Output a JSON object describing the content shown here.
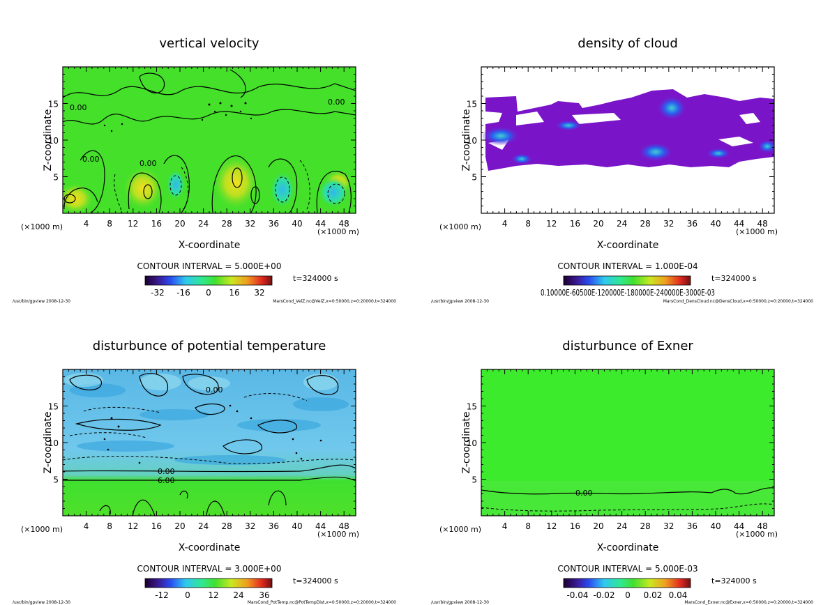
{
  "panels": [
    {
      "title": "vertical velocity",
      "xlabel": "X-coordinate",
      "ylabel": "Z-coordinate",
      "x_unit": "(×1000 m)",
      "x_ticks": [
        4,
        8,
        12,
        16,
        20,
        24,
        28,
        32,
        36,
        40,
        44,
        48
      ],
      "y_ticks": [
        5,
        10,
        15
      ],
      "contour_interval": "CONTOUR INTERVAL = 5.000E+00",
      "time": "t=324000 s",
      "colorbar_labels": [
        "-32",
        "-16",
        "0",
        "16",
        "32"
      ],
      "footer_left": "/usr/bin/gpview  2008-12-30",
      "footer_right": "MarsCond_VelZ.nc@VelZ,x=0:50000,z=0:20000,t=324000",
      "contour_labels": [
        "0.00",
        "0.00",
        "0.00",
        "0.00"
      ],
      "colors": {
        "background": "#44e02a"
      }
    },
    {
      "title": "density of cloud",
      "xlabel": "X-coordinate",
      "ylabel": "Z-coordinate",
      "x_unit": "(×1000 m)",
      "x_ticks": [
        4,
        8,
        12,
        16,
        20,
        24,
        28,
        32,
        36,
        40,
        44,
        48
      ],
      "y_ticks": [
        5,
        10,
        15
      ],
      "contour_interval": "CONTOUR INTERVAL = 1.000E-04",
      "time": "t=324000 s",
      "colorbar_labels": [
        "0.10000E-60500E-120000E-180000E-240000E-3000E-03"
      ],
      "footer_left": "/usr/bin/gpview  2008-12-30",
      "footer_right": "MarsCond_DensCloud.nc@DensCloud,x=0:50000,z=0:20000,t=324000",
      "contour_labels": [],
      "colors": {
        "cloud": "#7a14c8",
        "cloud_dense": "#2a6cf0"
      }
    },
    {
      "title": "disturbunce of potential temperature",
      "xlabel": "X-coordinate",
      "ylabel": "Z-coordinate",
      "x_unit": "(×1000 m)",
      "x_ticks": [
        4,
        8,
        12,
        16,
        20,
        24,
        28,
        32,
        36,
        40,
        44,
        48
      ],
      "y_ticks": [
        5,
        10,
        15
      ],
      "contour_interval": "CONTOUR INTERVAL = 3.000E+00",
      "time": "t=324000 s",
      "colorbar_labels": [
        "-12",
        "0",
        "12",
        "24",
        "36"
      ],
      "footer_left": "/usr/bin/gpview  2008-12-30",
      "footer_right": "MarsCond_PotTemp.nc@PotTempDist,x=0:50000,z=0:20000,t=324000",
      "contour_labels": [
        "0.00",
        "0.00",
        "6.00"
      ],
      "colors": {
        "upper": "#6cc0e8",
        "lower": "#4ee02a"
      }
    },
    {
      "title": "disturbunce of Exner",
      "xlabel": "X-coordinate",
      "ylabel": "Z-coordinate",
      "x_unit": "(×1000 m)",
      "x_ticks": [
        4,
        8,
        12,
        16,
        20,
        24,
        28,
        32,
        36,
        40,
        44,
        48
      ],
      "y_ticks": [
        5,
        10,
        15
      ],
      "contour_interval": "CONTOUR INTERVAL = 5.000E-03",
      "time": "t=324000 s",
      "colorbar_labels": [
        "-0.04",
        "-0.02",
        "0",
        "0.02",
        "0.04"
      ],
      "footer_left": "/usr/bin/gpview  2008-12-30",
      "footer_right": "MarsCond_Exner.nc@Exner,x=0:50000,z=0:20000,t=324000",
      "contour_labels": [
        "0.00"
      ],
      "colors": {
        "background": "#3cec2c"
      }
    }
  ],
  "chart_data": [
    {
      "type": "heatmap",
      "title": "vertical velocity",
      "xlabel": "X-coordinate",
      "ylabel": "Z-coordinate",
      "xlim": [
        0,
        50
      ],
      "ylim": [
        0,
        20
      ],
      "contour_interval": 5.0,
      "colorbar_range": [
        -40,
        40
      ]
    },
    {
      "type": "heatmap",
      "title": "density of cloud",
      "xlabel": "X-coordinate",
      "ylabel": "Z-coordinate",
      "xlim": [
        0,
        50
      ],
      "ylim": [
        0,
        20
      ],
      "contour_interval": 0.0001
    },
    {
      "type": "heatmap",
      "title": "disturbunce of potential temperature",
      "xlabel": "X-coordinate",
      "ylabel": "Z-coordinate",
      "xlim": [
        0,
        50
      ],
      "ylim": [
        0,
        20
      ],
      "contour_interval": 3.0,
      "colorbar_range": [
        -18,
        42
      ]
    },
    {
      "type": "heatmap",
      "title": "disturbunce of Exner",
      "xlabel": "X-coordinate",
      "ylabel": "Z-coordinate",
      "xlim": [
        0,
        50
      ],
      "ylim": [
        0,
        20
      ],
      "contour_interval": 0.005,
      "colorbar_range": [
        -0.05,
        0.05
      ]
    }
  ]
}
